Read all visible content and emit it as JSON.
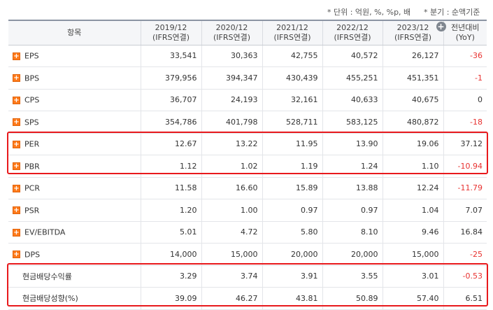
{
  "notes": {
    "unit": "* 단위 : 억원, %, %p, 배",
    "basis": "* 분기 : 순액기준"
  },
  "header": {
    "item_label": "항목",
    "periods": [
      {
        "year": "2019/12",
        "basis": "(IFRS연결)"
      },
      {
        "year": "2020/12",
        "basis": "(IFRS연결)"
      },
      {
        "year": "2021/12",
        "basis": "(IFRS연결)"
      },
      {
        "year": "2022/12",
        "basis": "(IFRS연결)"
      },
      {
        "year": "2023/12",
        "basis": "(IFRS연결)"
      }
    ],
    "yoy_line1": "전년대비",
    "yoy_line2": "(YoY)",
    "expand_icon": "+"
  },
  "row_expand_icon": "+",
  "rows": [
    {
      "name": "EPS",
      "values": [
        "33,541",
        "30,363",
        "42,755",
        "40,572",
        "26,127"
      ],
      "yoy": "-36"
    },
    {
      "name": "BPS",
      "values": [
        "379,956",
        "394,347",
        "430,439",
        "455,251",
        "451,351"
      ],
      "yoy": "-1"
    },
    {
      "name": "CPS",
      "values": [
        "36,707",
        "24,193",
        "32,161",
        "40,633",
        "40,675"
      ],
      "yoy": "0"
    },
    {
      "name": "SPS",
      "values": [
        "354,786",
        "401,798",
        "528,711",
        "583,125",
        "480,872"
      ],
      "yoy": "-18"
    },
    {
      "name": "PER",
      "values": [
        "12.67",
        "13.22",
        "11.95",
        "13.90",
        "19.06"
      ],
      "yoy": "37.12"
    },
    {
      "name": "PBR",
      "values": [
        "1.12",
        "1.02",
        "1.19",
        "1.24",
        "1.10"
      ],
      "yoy": "-10.94"
    },
    {
      "name": "PCR",
      "values": [
        "11.58",
        "16.60",
        "15.89",
        "13.88",
        "12.24"
      ],
      "yoy": "-11.79"
    },
    {
      "name": "PSR",
      "values": [
        "1.20",
        "1.00",
        "0.97",
        "0.97",
        "1.04"
      ],
      "yoy": "7.07"
    },
    {
      "name": "EV/EBITDA",
      "values": [
        "5.01",
        "4.72",
        "5.80",
        "8.10",
        "9.46"
      ],
      "yoy": "16.84"
    },
    {
      "name": "DPS",
      "values": [
        "14,000",
        "15,000",
        "20,000",
        "20,000",
        "15,000"
      ],
      "yoy": "-25"
    },
    {
      "name": "현금배당수익률",
      "values": [
        "3.29",
        "3.74",
        "3.91",
        "3.55",
        "3.01"
      ],
      "yoy": "-0.53"
    },
    {
      "name": "현금배당성향(%)",
      "values": [
        "39.09",
        "46.27",
        "43.81",
        "50.89",
        "57.40"
      ],
      "yoy": "6.51"
    }
  ],
  "colors": {
    "negative": "#e8312f",
    "highlight_box": "#e8191c",
    "expand_icon": "#ff7a1a"
  }
}
